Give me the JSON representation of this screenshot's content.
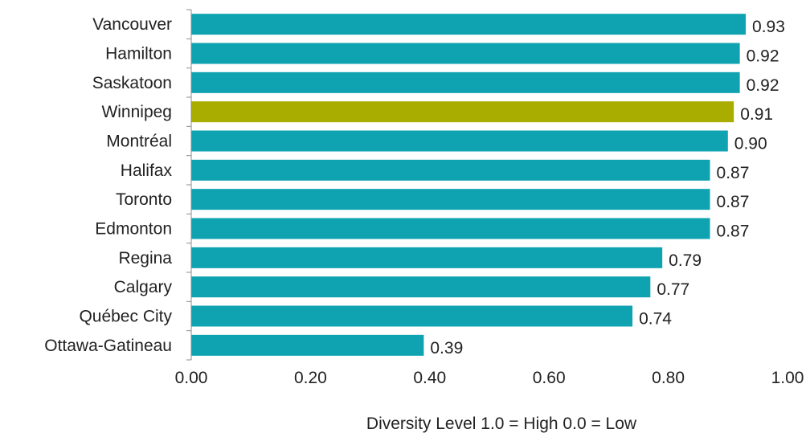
{
  "chart_data": {
    "type": "bar",
    "orientation": "horizontal",
    "categories": [
      "Vancouver",
      "Hamilton",
      "Saskatoon",
      "Winnipeg",
      "Montréal",
      "Halifax",
      "Toronto",
      "Edmonton",
      "Regina",
      "Calgary",
      "Québec City",
      "Ottawa-Gatineau"
    ],
    "values": [
      0.93,
      0.92,
      0.92,
      0.91,
      0.9,
      0.87,
      0.87,
      0.87,
      0.79,
      0.77,
      0.74,
      0.39
    ],
    "value_labels": [
      "0.93",
      "0.92",
      "0.92",
      "0.91",
      "0.90",
      "0.87",
      "0.87",
      "0.87",
      "0.79",
      "0.77",
      "0.74",
      "0.39"
    ],
    "highlight_category": "Winnipeg",
    "colors": {
      "bar": "#0fa3b1",
      "highlight": "#a8ad00"
    },
    "xlim": [
      0,
      1.0
    ],
    "xticks": [
      0,
      0.2,
      0.4,
      0.6,
      0.8,
      1.0
    ],
    "xtick_labels": [
      "0.00",
      "0.20",
      "0.40",
      "0.60",
      "0.80",
      "1.00"
    ],
    "xlabel": "Diversity Level 1.0 = High 0.0 = Low",
    "title": "",
    "grid": false,
    "legend": "none"
  }
}
